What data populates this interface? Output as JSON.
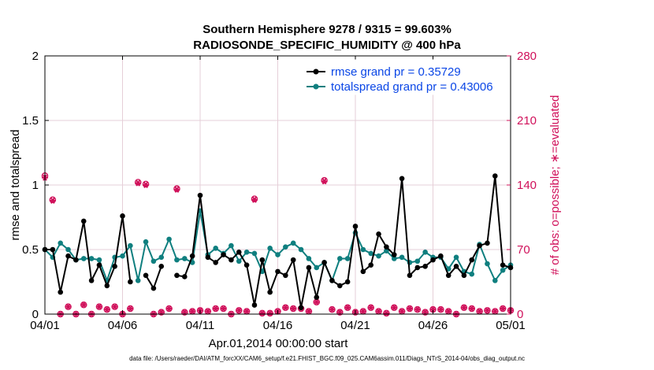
{
  "chart_data": {
    "type": "line",
    "title": "Southern Hemisphere 9278 / 9315 = 99.603%",
    "subtitle": "RADIOSONDE_SPECIFIC_HUMIDITY @ 400 hPa",
    "xlabel": "Apr.01,2014 00:00:00 start",
    "ylabel_left": "rmse and totalspread",
    "ylabel_right": "# of obs: o=possible; ∗=evaluated",
    "footer": "data file: /Users/raeder/DAI/ATM_forcXX/CAM6_setup/f.e21.FHIST_BGC.f09_025.CAM6assim.011/Diags_NTrS_2014-04/obs_diag_output.nc",
    "xlim": [
      0,
      30
    ],
    "ylim_left": [
      0,
      2
    ],
    "ylim_right": [
      0,
      280
    ],
    "xticks": [
      0,
      5,
      10,
      15,
      20,
      25,
      30
    ],
    "xtick_labels": [
      "04/01",
      "04/06",
      "04/11",
      "04/16",
      "04/21",
      "04/26",
      "05/01"
    ],
    "yticks_left": [
      0,
      0.5,
      1,
      1.5,
      2
    ],
    "ytick_labels_left": [
      "0",
      "0.5",
      "1",
      "1.5",
      "2"
    ],
    "yticks_right": [
      0,
      70,
      140,
      210,
      280
    ],
    "ytick_labels_right": [
      "0",
      "70",
      "140",
      "210",
      "280"
    ],
    "colors": {
      "rmse": "#000000",
      "spread": "#0f7f7f",
      "obs": "#d0105a",
      "legend_text": "#0a46e6"
    },
    "legend": [
      {
        "label": "rmse grand pr = 0.35729",
        "key": "rmse"
      },
      {
        "label": "totalspread grand pr = 0.43006",
        "key": "spread"
      }
    ],
    "x": [
      0,
      0.5,
      1,
      1.5,
      2,
      2.5,
      3,
      3.5,
      4,
      4.5,
      5,
      5.5,
      6,
      6.5,
      7,
      7.5,
      8,
      8.5,
      9,
      9.5,
      10,
      10.5,
      11,
      11.5,
      12,
      12.5,
      13,
      13.5,
      14,
      14.5,
      15,
      15.5,
      16,
      16.5,
      17,
      17.5,
      18,
      18.5,
      19,
      19.5,
      20,
      20.5,
      21,
      21.5,
      22,
      22.5,
      23,
      23.5,
      24,
      24.5,
      25,
      25.5,
      26,
      26.5,
      27,
      27.5,
      28,
      28.5,
      29,
      29.5,
      30
    ],
    "series": [
      {
        "name": "rmse",
        "values": [
          0.5,
          0.5,
          0.17,
          0.45,
          0.42,
          0.72,
          0.26,
          0.38,
          0.22,
          0.37,
          0.76,
          0.25,
          null,
          0.3,
          0.2,
          0.37,
          null,
          0.3,
          0.29,
          0.45,
          0.92,
          0.44,
          0.4,
          0.46,
          0.42,
          0.48,
          0.38,
          0.07,
          0.42,
          0.17,
          0.33,
          0.3,
          0.42,
          0.05,
          0.36,
          0.13,
          0.4,
          0.26,
          0.22,
          0.25,
          0.68,
          0.33,
          0.38,
          0.62,
          0.52,
          0.46,
          1.05,
          0.3,
          0.36,
          0.37,
          0.42,
          0.45,
          0.3,
          0.37,
          0.3,
          0.42,
          0.53,
          0.55,
          1.07,
          0.38,
          0.36
        ]
      },
      {
        "name": "totalspread",
        "values": [
          0.5,
          0.44,
          0.55,
          0.5,
          0.42,
          0.43,
          0.43,
          0.42,
          0.26,
          0.44,
          0.45,
          0.53,
          0.26,
          0.56,
          0.41,
          0.44,
          0.58,
          0.42,
          0.43,
          0.4,
          0.8,
          0.46,
          0.51,
          0.47,
          0.53,
          0.41,
          0.48,
          0.47,
          0.33,
          0.51,
          0.46,
          0.52,
          0.55,
          0.5,
          0.43,
          0.36,
          0.4,
          0.26,
          0.43,
          0.43,
          0.63,
          0.5,
          0.47,
          0.45,
          0.49,
          0.43,
          0.44,
          0.4,
          0.41,
          0.48,
          0.44,
          0.44,
          0.35,
          0.44,
          0.33,
          0.31,
          0.54,
          0.39,
          0.26,
          0.34,
          0.38
        ]
      }
    ],
    "obs_possible": [
      150,
      124,
      0,
      8,
      0,
      10,
      0,
      8,
      5,
      8,
      0,
      6,
      143,
      141,
      0,
      2,
      6,
      136,
      2,
      3,
      4,
      3,
      6,
      6,
      0,
      4,
      3,
      125,
      1,
      1,
      3,
      7,
      6,
      6,
      3,
      13,
      145,
      5,
      2,
      7,
      2,
      3,
      7,
      3,
      1,
      7,
      3,
      6,
      5,
      2,
      5,
      5,
      3,
      0,
      7,
      6,
      3,
      4,
      3,
      6,
      4
    ],
    "obs_evaluated": [
      148,
      123,
      0,
      8,
      0,
      10,
      0,
      8,
      5,
      8,
      0,
      6,
      142,
      140,
      0,
      2,
      6,
      135,
      2,
      3,
      4,
      3,
      6,
      6,
      0,
      4,
      3,
      124,
      1,
      1,
      3,
      7,
      6,
      6,
      3,
      13,
      144,
      5,
      2,
      7,
      2,
      3,
      7,
      3,
      1,
      7,
      3,
      6,
      5,
      2,
      5,
      5,
      3,
      0,
      7,
      6,
      3,
      4,
      3,
      6,
      4
    ]
  }
}
